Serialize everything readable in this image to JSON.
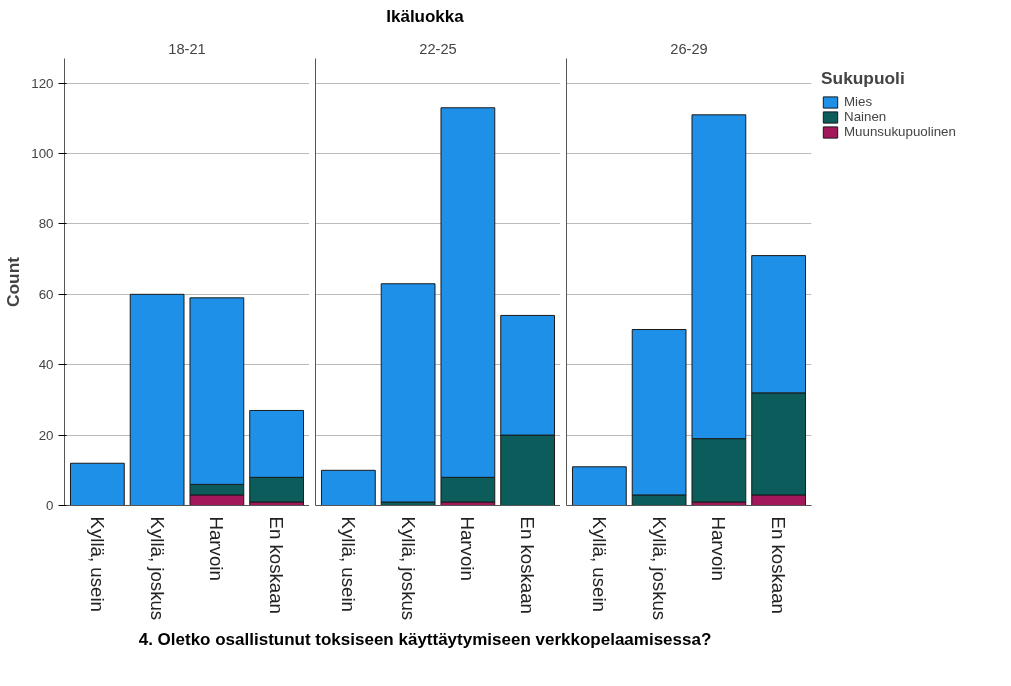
{
  "chart_data": [
    {
      "type": "bar",
      "title": "18-21",
      "ylabel": "Count",
      "categories": [
        "Kyllä, usein",
        "Kyllä, joskus",
        "Harvoin",
        "En koskaan"
      ],
      "stacked": true,
      "ylim": [
        0,
        127
      ],
      "yticks": [
        0,
        20,
        40,
        60,
        80,
        100,
        120
      ],
      "grid": "y",
      "legend": false,
      "series": [
        {
          "color": "#a3185a",
          "values": [
            0,
            0,
            3,
            1
          ]
        },
        {
          "color": "#0b5c5a",
          "values": [
            0,
            0,
            3,
            7
          ]
        },
        {
          "color": "#1e90e8",
          "values": [
            12,
            60,
            53,
            19
          ]
        }
      ]
    },
    {
      "type": "bar",
      "title": "22-25",
      "annotations": [
        "Ikäluokka"
      ],
      "xlabel": "4. Oletko osallistunut toksiseen käyttäytymiseen verkkopelaamisessa?",
      "categories": [
        "Kyllä, usein",
        "Kyllä, joskus",
        "Harvoin",
        "En koskaan"
      ],
      "stacked": true,
      "ylim": [
        0,
        127
      ],
      "yticks": [
        0,
        20,
        40,
        60,
        80,
        100,
        120
      ],
      "grid": "y",
      "legend": false,
      "tick_labels": "x",
      "series": [
        {
          "color": "#a3185a",
          "values": [
            0,
            0,
            1,
            0
          ]
        },
        {
          "color": "#0b5c5a",
          "values": [
            0,
            1,
            7,
            20
          ]
        },
        {
          "color": "#1e90e8",
          "values": [
            10,
            62,
            105,
            34
          ]
        }
      ]
    },
    {
      "type": "bar",
      "title": "26-29",
      "legend_title": "Sukupuoli",
      "categories": [
        "Kyllä, usein",
        "Kyllä, joskus",
        "Harvoin",
        "En koskaan"
      ],
      "stacked": true,
      "ylim": [
        0,
        127
      ],
      "yticks": [
        0,
        20,
        40,
        60,
        80,
        100,
        120
      ],
      "grid": "y",
      "legend": "top right",
      "tick_labels": "x",
      "series": [
        {
          "name": "Muunsukupuolinen",
          "color": "#a3185a",
          "values": [
            0,
            0,
            1,
            3
          ]
        },
        {
          "name": "Nainen",
          "color": "#0b5c5a",
          "values": [
            0,
            3,
            18,
            29
          ]
        },
        {
          "name": "Mies",
          "color": "#1e90e8",
          "values": [
            11,
            47,
            92,
            39
          ]
        }
      ]
    }
  ]
}
